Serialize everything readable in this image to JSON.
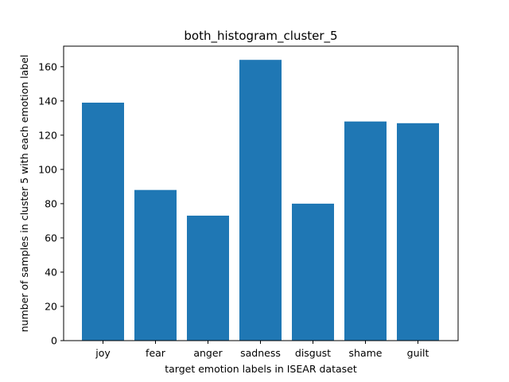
{
  "chart_data": {
    "type": "bar",
    "title": "both_histogram_cluster_5",
    "xlabel": "target emotion labels in ISEAR dataset",
    "ylabel": "number of samples in cluster 5 with each emotion label",
    "categories": [
      "joy",
      "fear",
      "anger",
      "sadness",
      "disgust",
      "shame",
      "guilt"
    ],
    "values": [
      139,
      88,
      73,
      164,
      80,
      128,
      127
    ],
    "ylim": [
      0,
      172
    ],
    "yticks": [
      "0",
      "20",
      "40",
      "60",
      "80",
      "100",
      "120",
      "140",
      "160"
    ],
    "bar_color": "#1f77b4",
    "grid": false,
    "legend": "none"
  }
}
